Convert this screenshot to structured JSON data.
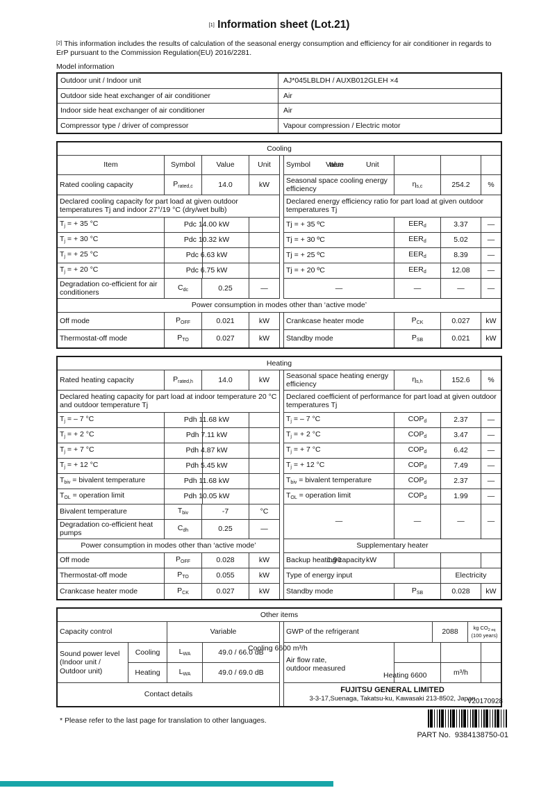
{
  "page": {
    "title_prefix": "[1]",
    "title": "Information sheet (Lot.21)",
    "intro_prefix": "[2]",
    "intro_text": "This information includes the results of calculation of the seasonal energy consumption and efficiency for air conditioner in regards to ErP pursuant to the Commission Regulation(EU) 2016/2281.",
    "version": "V20170928",
    "footnote": "* Please refer to the last page for translation to other languages.",
    "part_label": "PART No.",
    "part_number": "9384138750-01",
    "colors": {
      "footer_bar": "#18a5a8",
      "border_dark": "#1a1a1a"
    }
  },
  "model_info": {
    "label": "Model information",
    "rows": [
      {
        "name": "Outdoor unit / Indoor unit",
        "value": "AJ*045LBLDH / AUXB012GLEH ×4"
      },
      {
        "name": "Outdoor side heat exchanger of air conditioner",
        "value": "Air"
      },
      {
        "name": "Indoor side heat exchanger of air conditioner",
        "value": "Air"
      },
      {
        "name": "Compressor type / driver of compressor",
        "value": "Vapour compression / Electric motor"
      }
    ]
  },
  "cooling": {
    "section_title": "Cooling",
    "header": {
      "item": "Item",
      "symbol": "Symbol",
      "value": "Value",
      "unit": "Unit"
    },
    "header_overlay": {
      "symbol": "Symbol",
      "value": "Value",
      "item": "Item",
      "unit": "Unit"
    },
    "rated": {
      "label": "Rated cooling capacity",
      "sym_base": "P",
      "sym_sub": "rated,c",
      "value": "14.0",
      "unit": "kW"
    },
    "seasonal": {
      "label": "Seasonal space cooling energy efficiency",
      "sym_base": "η",
      "sym_sub": "s,c",
      "value": "254.2",
      "unit": "%"
    },
    "declared_left": "Declared cooling capacity for part load at given outdoor temperatures Tj and indoor 27°/19 °C (dry/wet bulb)",
    "declared_right": "Declared energy efficiency ratio for part load at given outdoor temperatures Tj",
    "part_load": [
      {
        "l_base": "T",
        "l_sub": "j",
        "l_rest": " = + 35 °C",
        "l_val": "Pdc 14.00 kW",
        "r_label": "Tj = + 35 ºC",
        "r_sym": "EER",
        "r_sym_sub": "d",
        "r_val": "3.37",
        "r_unit": "—"
      },
      {
        "l_base": "T",
        "l_sub": "j",
        "l_rest": " = + 30 °C",
        "l_val": "Pdc 10.32 kW",
        "r_label": "Tj = + 30 ºC",
        "r_sym": "EER",
        "r_sym_sub": "d",
        "r_val": "5.02",
        "r_unit": "—"
      },
      {
        "l_base": "T",
        "l_sub": "j",
        "l_rest": " = + 25 °C",
        "l_val": "Pdc 6.63 kW",
        "r_label": "Tj = + 25 ºC",
        "r_sym": "EER",
        "r_sym_sub": "d",
        "r_val": "8.39",
        "r_unit": "—"
      },
      {
        "l_base": "T",
        "l_sub": "j",
        "l_rest": " = + 20 °C",
        "l_val": "Pdc 6.75 kW",
        "r_label": "Tj = + 20 ºC",
        "r_sym": "EER",
        "r_sym_sub": "d",
        "r_val": "12.08",
        "r_unit": "—"
      }
    ],
    "degradation": {
      "label": "Degradation co-efficient for air conditioners",
      "sym_base": "C",
      "sym_sub": "dc",
      "value": "0.25",
      "unit": "—",
      "dash": "—"
    },
    "banner": "Power consumption in modes other than ‘active mode’",
    "power_rows": [
      {
        "l_label": "Off mode",
        "l_sym": "P",
        "l_sub": "OFF",
        "l_val": "0.021",
        "l_unit": "kW",
        "r_label": "Crankcase heater mode",
        "r_sym": "P",
        "r_sub": "CK",
        "r_val": "0.027",
        "r_unit": "kW"
      },
      {
        "l_label": "Thermostat-off mode",
        "l_sym": "P",
        "l_sub": "TO",
        "l_val": "0.027",
        "l_unit": "kW",
        "r_label": "Standby mode",
        "r_sym": "P",
        "r_sub": "SB",
        "r_val": "0.021",
        "r_unit": "kW"
      }
    ]
  },
  "heating": {
    "section_title": "Heating",
    "rated": {
      "label": "Rated heating capacity",
      "sym_base": "P",
      "sym_sub": "rated,h",
      "value": "14.0",
      "unit": "kW"
    },
    "seasonal": {
      "label": "Seasonal space heating energy efficiency",
      "sym_base": "η",
      "sym_sub": "s,h",
      "value": "152.6",
      "unit": "%"
    },
    "declared_left": "Declared heating capacity for part load at indoor temperature 20 °C and outdoor temperature Tj",
    "declared_right": "Declared coefficient of performance for part load at given outdoor temperatures Tj",
    "part_load": [
      {
        "l_base": "T",
        "l_sub": "j",
        "l_rest": " = – 7 °C",
        "l_val": "Pdh 11.68 kW",
        "r_base": "T",
        "r_sub": "j",
        "r_rest": " = – 7 °C",
        "r_sym": "COP",
        "r_sym_sub": "d",
        "r_val": "2.37",
        "r_unit": "—"
      },
      {
        "l_base": "T",
        "l_sub": "j",
        "l_rest": " = + 2 °C",
        "l_val": "Pdh 7.11 kW",
        "r_base": "T",
        "r_sub": "j",
        "r_rest": " = + 2 °C",
        "r_sym": "COP",
        "r_sym_sub": "d",
        "r_val": "3.47",
        "r_unit": "—"
      },
      {
        "l_base": "T",
        "l_sub": "j",
        "l_rest": " = + 7 °C",
        "l_val": "Pdh 4.87 kW",
        "r_base": "T",
        "r_sub": "j",
        "r_rest": " = + 7 °C",
        "r_sym": "COP",
        "r_sym_sub": "d",
        "r_val": "6.42",
        "r_unit": "—"
      },
      {
        "l_base": "T",
        "l_sub": "j",
        "l_rest": " = + 12 °C",
        "l_val": "Pdh 5.45 kW",
        "r_base": "T",
        "r_sub": "j",
        "r_rest": " = + 12 °C",
        "r_sym": "COP",
        "r_sym_sub": "d",
        "r_val": "7.49",
        "r_unit": "—"
      },
      {
        "l_base": "T",
        "l_sub": "biv",
        "l_rest": " = bivalent temperature",
        "l_val": "Pdh 11.68 kW",
        "r_base": "T",
        "r_sub": "biv",
        "r_rest": " = bivalent temperature",
        "r_sym": "COP",
        "r_sym_sub": "d",
        "r_val": "2.37",
        "r_unit": "—"
      },
      {
        "l_base": "T",
        "l_sub": "OL",
        "l_rest": " = operation limit",
        "l_val": "Pdh 10.05 kW",
        "r_base": "T",
        "r_sub": "OL",
        "r_rest": " = operation limit",
        "r_sym": "COP",
        "r_sym_sub": "d",
        "r_val": "1.99",
        "r_unit": "—"
      }
    ],
    "bivalent": {
      "label": "Bivalent temperature",
      "sym_base": "T",
      "sym_sub": "biv",
      "value": "-7",
      "unit": "°C"
    },
    "degradation": {
      "label": "Degradation co-efficient heat pumps",
      "sym_base": "C",
      "sym_sub": "dh",
      "value": "0.25",
      "unit": "—"
    },
    "dash_block": {
      "d1": "—",
      "d2": "—",
      "d3": "—",
      "d4": "—"
    },
    "banner_left": "Power consumption in modes other than ‘active mode’",
    "banner_right": "Supplementary heater",
    "left_power": [
      {
        "label": "Off mode",
        "sym": "P",
        "sub": "OFF",
        "value": "0.028",
        "unit": "kW"
      },
      {
        "label": "Thermostat-off mode",
        "sym": "P",
        "sub": "TO",
        "value": "0.055",
        "unit": "kW"
      },
      {
        "label": "Crankcase heater mode",
        "sym": "P",
        "sub": "CK",
        "value": "0.027",
        "unit": "kW"
      }
    ],
    "backup": {
      "label": "Backup heating capacity",
      "overlay_value": "1.90",
      "overlay_unit": "kW"
    },
    "energy_input": {
      "label": "Type of energy input",
      "value": "Electricity"
    },
    "standby": {
      "label": "Standby mode",
      "sym_base": "P",
      "sym_sub": "SB",
      "value": "0.028",
      "unit": "kW"
    }
  },
  "other": {
    "section_title": "Other items",
    "capacity": {
      "label": "Capacity control",
      "value": "Variable"
    },
    "gwp": {
      "label": "GWP of the refrigerant",
      "value": "2088",
      "unit_main": "kg CO",
      "unit_sub": "2 eq",
      "unit_note": "(100 years)"
    },
    "sound": {
      "label_l1": "Sound power level",
      "label_l2": "(Indoor unit /",
      "label_l3": " Outdoor unit)",
      "rows": [
        {
          "mode": "Cooling",
          "sym": "L",
          "sym_sub": "WA",
          "value": "49.0 / 66.0 dB"
        },
        {
          "mode": "Heating",
          "sym": "L",
          "sym_sub": "WA",
          "value": "49.0 / 69.0 dB"
        }
      ]
    },
    "airflow": {
      "overlay": "Cooling 6600  m³/h",
      "label_l1": "Air flow rate,",
      "label_l2": "outdoor measured",
      "heating_text": "Heating 6600",
      "heating_unit": "m³/h"
    },
    "contact": {
      "label": "Contact details",
      "company": "FUJITSU GENERAL LIMITED",
      "address": "3-3-17,Suenaga, Takatsu-ku, Kawasaki 213-8502, Japan"
    }
  }
}
